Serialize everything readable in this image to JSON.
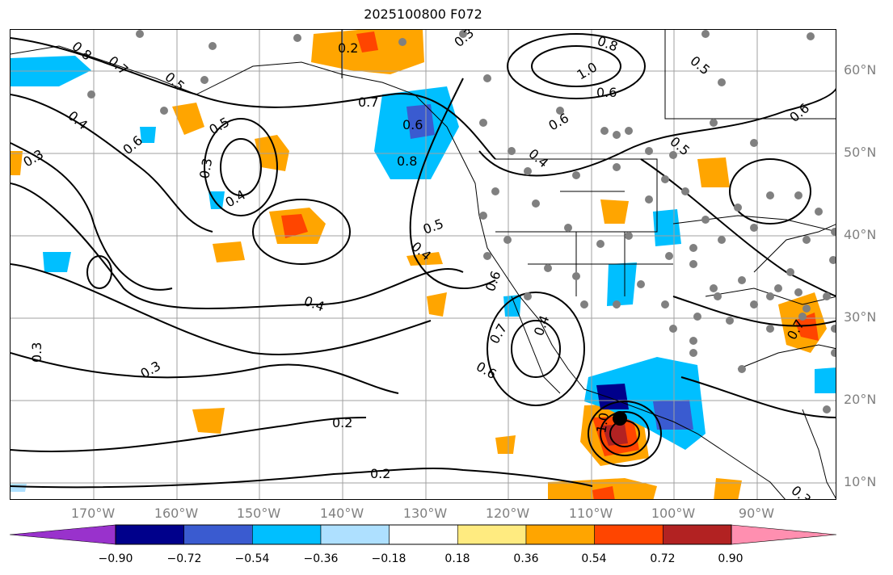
{
  "title": "2025100800 F072",
  "lat_labels": [
    "60°N",
    "50°N",
    "40°N",
    "30°N",
    "20°N",
    "10°N"
  ],
  "lon_labels": [
    "170°W",
    "160°W",
    "150°W",
    "140°W",
    "130°W",
    "120°W",
    "110°W",
    "100°W",
    "90°W"
  ],
  "contour_labels": [
    "0.8",
    "0.7",
    "0.5",
    "0.2",
    "0.3",
    "0.8",
    "1.0",
    "0.6",
    "0.5",
    "0.4",
    "0.6",
    "0.5",
    "0.3",
    "0.4",
    "0.6",
    "0.5",
    "0.3",
    "0.4",
    "0.7",
    "0.6",
    "0.8",
    "0.5",
    "0.4",
    "0.4",
    "0.3",
    "0.3",
    "0.6",
    "0.7",
    "0.6",
    "0.2",
    "0.2",
    "1.0",
    "0.7",
    "0.3",
    "0.6",
    "0.4"
  ],
  "colorbar": {
    "ticks": [
      "−0.90",
      "−0.72",
      "−0.54",
      "−0.36",
      "−0.18",
      "0.18",
      "0.36",
      "0.54",
      "0.72",
      "0.90"
    ],
    "colors": [
      "#9932cc",
      "#00008b",
      "#3a5bd0",
      "#00bfff",
      "#aee0ff",
      "#ffffff",
      "#ffeb80",
      "#ffa500",
      "#ff4500",
      "#b22222",
      "#ff8fb0"
    ]
  }
}
